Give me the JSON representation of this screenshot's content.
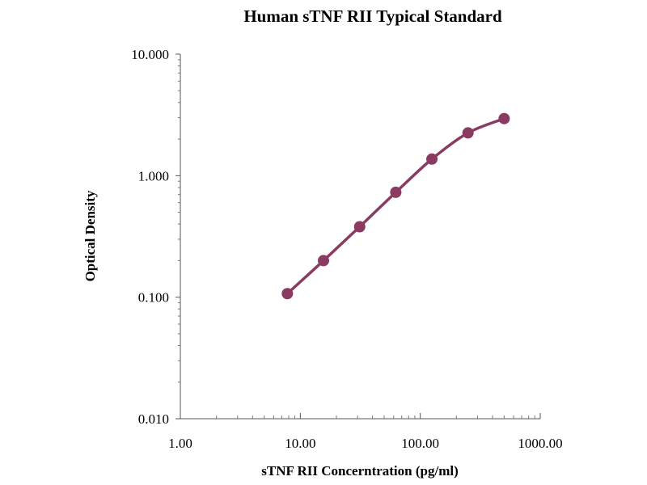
{
  "chart_data": {
    "type": "scatter",
    "title": "Human sTNF RII Typical Standard",
    "xlabel": "sTNF RII Concerntration (pg/ml)",
    "ylabel": "Optical Density",
    "x_scale": "log",
    "y_scale": "log",
    "xlim": [
      1,
      1000
    ],
    "ylim": [
      0.01,
      10
    ],
    "x_ticks": [
      "1.00",
      "10.00",
      "100.00",
      "1000.00"
    ],
    "y_ticks": [
      "0.010",
      "0.100",
      "1.000",
      "10.000"
    ],
    "grid": false,
    "line_color": "#8b3a62",
    "series": [
      {
        "x": [
          7.8,
          15.6,
          31.25,
          62.5,
          125,
          250,
          500
        ],
        "y": [
          0.107,
          0.2,
          0.38,
          0.73,
          1.37,
          2.25,
          2.95
        ]
      }
    ]
  }
}
